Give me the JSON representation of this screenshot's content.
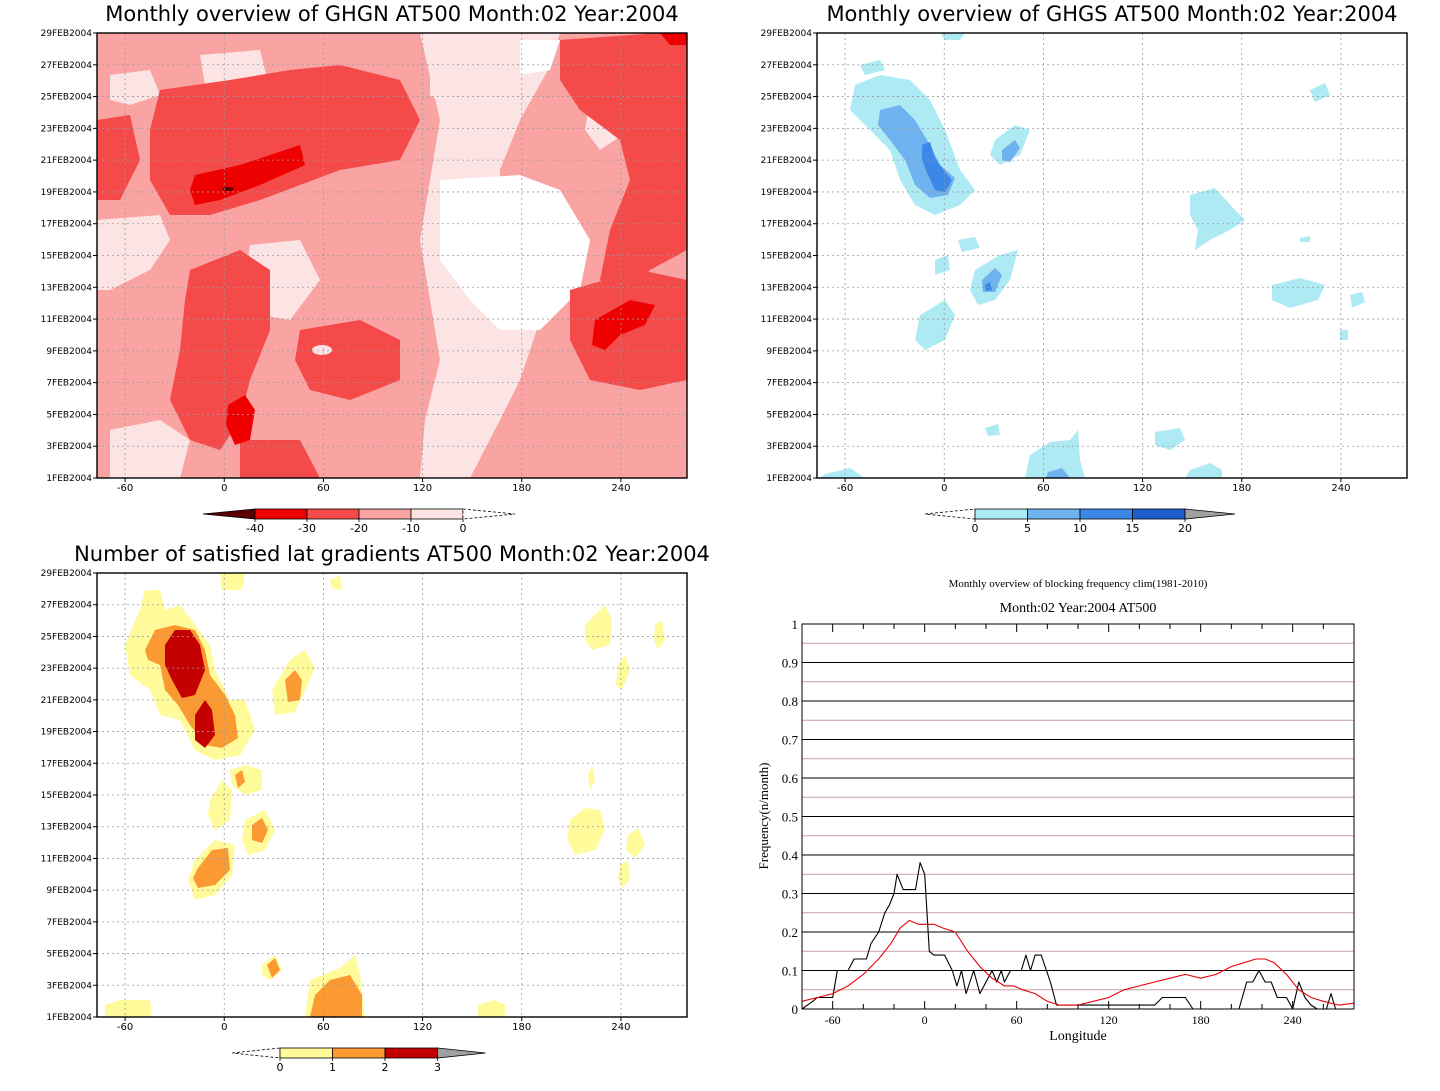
{
  "panels": {
    "ghgn": {
      "title": "Monthly overview of GHGN AT500 Month:02 Year:2004",
      "yticks": [
        "29FEB2004",
        "27FEB2004",
        "25FEB2004",
        "23FEB2004",
        "21FEB2004",
        "19FEB2004",
        "17FEB2004",
        "15FEB2004",
        "13FEB2004",
        "11FEB2004",
        "9FEB2004",
        "7FEB2004",
        "5FEB2004",
        "3FEB2004",
        "1FEB2004"
      ],
      "xticks": [
        "-60",
        "0",
        "60",
        "120",
        "180",
        "240"
      ],
      "colorbar": {
        "labels": [
          "-40",
          "-30",
          "-20",
          "-10",
          "0"
        ],
        "colors": [
          "#5a0000",
          "#ee0000",
          "#f54a4a",
          "#f9a3a3",
          "#fde4e4"
        ]
      }
    },
    "ghgs": {
      "title": "Monthly overview of GHGS AT500 Month:02 Year:2004",
      "yticks": [
        "29FEB2004",
        "27FEB2004",
        "25FEB2004",
        "23FEB2004",
        "21FEB2004",
        "19FEB2004",
        "17FEB2004",
        "15FEB2004",
        "13FEB2004",
        "11FEB2004",
        "9FEB2004",
        "7FEB2004",
        "5FEB2004",
        "3FEB2004",
        "1FEB2004"
      ],
      "xticks": [
        "-60",
        "0",
        "60",
        "120",
        "180",
        "240"
      ],
      "colorbar": {
        "labels": [
          "0",
          "5",
          "10",
          "15",
          "20"
        ],
        "colors": [
          "#aeeaf4",
          "#6fb2f0",
          "#3b88e8",
          "#1e5fd0",
          "#a0a0a0"
        ]
      }
    },
    "lat": {
      "title": "Number of satisfied lat gradients AT500 Month:02 Year:2004",
      "yticks": [
        "29FEB2004",
        "27FEB2004",
        "25FEB2004",
        "23FEB2004",
        "21FEB2004",
        "19FEB2004",
        "17FEB2004",
        "15FEB2004",
        "13FEB2004",
        "11FEB2004",
        "9FEB2004",
        "7FEB2004",
        "5FEB2004",
        "3FEB2004",
        "1FEB2004"
      ],
      "xticks": [
        "-60",
        "0",
        "60",
        "120",
        "180",
        "240"
      ],
      "colorbar": {
        "labels": [
          "0",
          "1",
          "2",
          "3"
        ],
        "colors": [
          "#fffa9a",
          "#fb9a33",
          "#c40000",
          "#a0a0a0"
        ]
      }
    },
    "freq": {
      "title": "Monthly overview of blocking frequency clim(1981-2010)",
      "subtitle": "Month:02 Year:2004  AT500",
      "xlabel": "Longitude",
      "ylabel": "Frequency(n/month)"
    }
  },
  "chart_data": [
    {
      "type": "heatmap",
      "title": "Monthly overview of GHGN AT500 Month:02 Year:2004",
      "x_ticks": [
        -60,
        0,
        60,
        120,
        180,
        240
      ],
      "xlim": [
        -77,
        280
      ],
      "y_ticks": [
        "1FEB2004",
        "3FEB2004",
        "5FEB2004",
        "7FEB2004",
        "9FEB2004",
        "11FEB2004",
        "13FEB2004",
        "15FEB2004",
        "17FEB2004",
        "19FEB2004",
        "21FEB2004",
        "23FEB2004",
        "25FEB2004",
        "27FEB2004",
        "29FEB2004"
      ],
      "levels": [
        -40,
        -30,
        -20,
        -10,
        0
      ],
      "grid": true
    },
    {
      "type": "heatmap",
      "title": "Monthly overview of GHGS AT500 Month:02 Year:2004",
      "x_ticks": [
        -60,
        0,
        60,
        120,
        180,
        240
      ],
      "xlim": [
        -77,
        280
      ],
      "y_ticks": [
        "1FEB2004",
        "3FEB2004",
        "5FEB2004",
        "7FEB2004",
        "9FEB2004",
        "11FEB2004",
        "13FEB2004",
        "15FEB2004",
        "17FEB2004",
        "19FEB2004",
        "21FEB2004",
        "23FEB2004",
        "25FEB2004",
        "27FEB2004",
        "29FEB2004"
      ],
      "levels": [
        0,
        5,
        10,
        15,
        20
      ],
      "grid": true
    },
    {
      "type": "heatmap",
      "title": "Number of satisfied lat gradients AT500 Month:02 Year:2004",
      "x_ticks": [
        -60,
        0,
        60,
        120,
        180,
        240
      ],
      "xlim": [
        -77,
        280
      ],
      "y_ticks": [
        "1FEB2004",
        "3FEB2004",
        "5FEB2004",
        "7FEB2004",
        "9FEB2004",
        "11FEB2004",
        "13FEB2004",
        "15FEB2004",
        "17FEB2004",
        "19FEB2004",
        "21FEB2004",
        "23FEB2004",
        "25FEB2004",
        "27FEB2004",
        "29FEB2004"
      ],
      "levels": [
        0,
        1,
        2,
        3
      ],
      "grid": true
    },
    {
      "type": "line",
      "title": "Monthly overview of blocking frequency clim(1981-2010)",
      "subtitle": "Month:02 Year:2004  AT500",
      "xlabel": "Longitude",
      "ylabel": "Frequency(n/month)",
      "xlim": [
        -80,
        280
      ],
      "ylim": [
        0,
        1
      ],
      "x_ticks": [
        -60,
        0,
        60,
        120,
        180,
        240
      ],
      "y_ticks": [
        0,
        0.1,
        0.2,
        0.3,
        0.4,
        0.5,
        0.6,
        0.7,
        0.8,
        0.9,
        1
      ],
      "grid": true,
      "series": [
        {
          "color": "#000000",
          "points": [
            [
              -80,
              0
            ],
            [
              -73,
              0.02
            ],
            [
              -70,
              0.03
            ],
            [
              -60,
              0.03
            ],
            [
              -57,
              0.1
            ],
            [
              -50,
              0.1
            ],
            [
              -46,
              0.13
            ],
            [
              -42,
              0.13
            ],
            [
              -38,
              0.13
            ],
            [
              -35,
              0.17
            ],
            [
              -30,
              0.2
            ],
            [
              -26,
              0.25
            ],
            [
              -23,
              0.27
            ],
            [
              -20,
              0.3
            ],
            [
              -18,
              0.35
            ],
            [
              -14,
              0.31
            ],
            [
              -10,
              0.31
            ],
            [
              -6,
              0.31
            ],
            [
              -3,
              0.38
            ],
            [
              0,
              0.35
            ],
            [
              3,
              0.15
            ],
            [
              6,
              0.14
            ],
            [
              10,
              0.14
            ],
            [
              13,
              0.14
            ],
            [
              18,
              0.1
            ],
            [
              21,
              0.06
            ],
            [
              24,
              0.1
            ],
            [
              27,
              0.04
            ],
            [
              32,
              0.1
            ],
            [
              36,
              0.04
            ],
            [
              40,
              0.07
            ],
            [
              44,
              0.1
            ],
            [
              47,
              0.07
            ],
            [
              50,
              0.1
            ],
            [
              52,
              0.07
            ],
            [
              56,
              0.1
            ],
            [
              60,
              0.1
            ],
            [
              63,
              0.1
            ],
            [
              66,
              0.14
            ],
            [
              69,
              0.1
            ],
            [
              72,
              0.14
            ],
            [
              76,
              0.14
            ],
            [
              82,
              0.07
            ],
            [
              86,
              0.01
            ],
            [
              92,
              0.01
            ],
            [
              100,
              0.01
            ],
            [
              112,
              0.01
            ],
            [
              130,
              0.01
            ],
            [
              150,
              0.01
            ],
            [
              155,
              0.03
            ],
            [
              170,
              0.03
            ],
            [
              175,
              0
            ],
            [
              205,
              0
            ],
            [
              210,
              0.07
            ],
            [
              214,
              0.07
            ],
            [
              218,
              0.1
            ],
            [
              222,
              0.07
            ],
            [
              226,
              0.07
            ],
            [
              230,
              0.03
            ],
            [
              236,
              0.03
            ],
            [
              240,
              0
            ],
            [
              244,
              0.07
            ],
            [
              248,
              0.03
            ],
            [
              252,
              0.01
            ],
            [
              256,
              0
            ],
            [
              262,
              0
            ],
            [
              265,
              0.04
            ],
            [
              268,
              0
            ],
            [
              280,
              0
            ]
          ]
        },
        {
          "color": "#e8000b",
          "points": [
            [
              -80,
              0.02
            ],
            [
              -70,
              0.03
            ],
            [
              -60,
              0.04
            ],
            [
              -50,
              0.06
            ],
            [
              -40,
              0.09
            ],
            [
              -30,
              0.13
            ],
            [
              -22,
              0.17
            ],
            [
              -16,
              0.21
            ],
            [
              -10,
              0.23
            ],
            [
              -4,
              0.22
            ],
            [
              0,
              0.22
            ],
            [
              6,
              0.22
            ],
            [
              12,
              0.21
            ],
            [
              20,
              0.2
            ],
            [
              28,
              0.15
            ],
            [
              36,
              0.11
            ],
            [
              44,
              0.08
            ],
            [
              52,
              0.06
            ],
            [
              58,
              0.06
            ],
            [
              64,
              0.05
            ],
            [
              72,
              0.04
            ],
            [
              80,
              0.02
            ],
            [
              88,
              0.01
            ],
            [
              100,
              0.01
            ],
            [
              110,
              0.02
            ],
            [
              120,
              0.03
            ],
            [
              130,
              0.05
            ],
            [
              140,
              0.06
            ],
            [
              150,
              0.07
            ],
            [
              160,
              0.08
            ],
            [
              170,
              0.09
            ],
            [
              180,
              0.08
            ],
            [
              190,
              0.09
            ],
            [
              200,
              0.11
            ],
            [
              208,
              0.12
            ],
            [
              216,
              0.13
            ],
            [
              222,
              0.13
            ],
            [
              228,
              0.12
            ],
            [
              236,
              0.09
            ],
            [
              244,
              0.05
            ],
            [
              252,
              0.03
            ],
            [
              260,
              0.02
            ],
            [
              270,
              0.01
            ],
            [
              280,
              0.015
            ]
          ]
        }
      ]
    }
  ]
}
